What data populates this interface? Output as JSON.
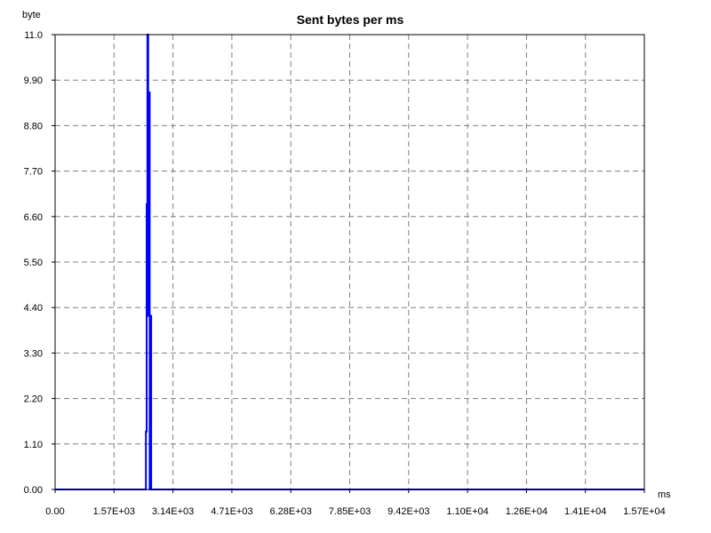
{
  "chart_data": {
    "type": "line",
    "title": "Sent bytes per ms",
    "xlabel": "ms",
    "ylabel": "byte",
    "xlim": [
      0,
      15700
    ],
    "ylim": [
      0,
      11.0
    ],
    "grid": true,
    "x_ticks": [
      "0.00",
      "1.57E+03",
      "3.14E+03",
      "4.71E+03",
      "6.28E+03",
      "7.85E+03",
      "9.42E+03",
      "1.10E+04",
      "1.26E+04",
      "1.41E+04",
      "1.57E+04"
    ],
    "y_ticks": [
      "0.00",
      "1.10",
      "2.20",
      "3.30",
      "4.40",
      "5.50",
      "6.60",
      "7.70",
      "8.80",
      "9.90",
      "11.0"
    ],
    "series": [
      {
        "color": "#0000ff",
        "x": [
          0,
          2400,
          2420,
          2420,
          2440,
          2440,
          2460,
          2460,
          2480,
          2480,
          2500,
          2500,
          2520,
          2520,
          2540,
          2540,
          2560,
          2560,
          2580,
          2580,
          15700
        ],
        "y": [
          0,
          0,
          0,
          1.4,
          1.4,
          6.9,
          6.9,
          11.0,
          11.0,
          4.2,
          4.2,
          9.6,
          9.6,
          0,
          0,
          4.2,
          4.2,
          0,
          0,
          0,
          0
        ]
      }
    ]
  }
}
